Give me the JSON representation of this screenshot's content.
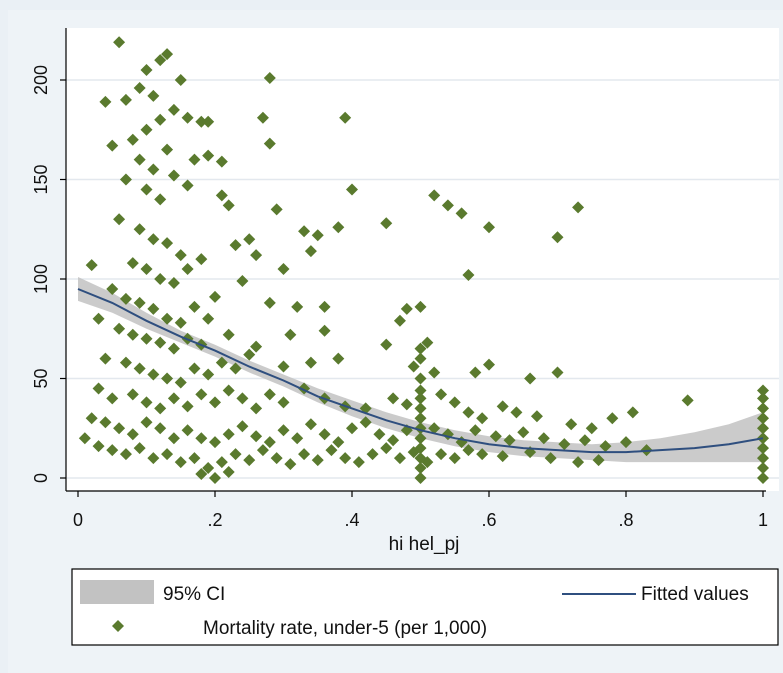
{
  "chart_data": {
    "type": "scatter",
    "xlabel": "hi hel_pj",
    "ylabel": "",
    "xlim": [
      0,
      1
    ],
    "ylim": [
      0,
      220
    ],
    "x_ticks": [
      0,
      0.2,
      0.4,
      0.6,
      0.8,
      1
    ],
    "x_tick_labels": [
      "0",
      ".2",
      ".4",
      ".6",
      ".8",
      "1"
    ],
    "y_ticks": [
      0,
      50,
      100,
      150,
      200
    ],
    "y_tick_labels": [
      "0",
      "50",
      "100",
      "150",
      "200"
    ],
    "grid": true,
    "legend_position": "bottom",
    "colors": {
      "points": "#5a7a2e",
      "fit": "#2f4f7f",
      "ci": "#c2c2c2",
      "plot_bg": "#ffffff",
      "grid": "#e3e8ee"
    },
    "legend": [
      {
        "key": "ci",
        "label": "95% CI"
      },
      {
        "key": "fit",
        "label": "Fitted values"
      },
      {
        "key": "points",
        "label": "Mortality rate, under-5 (per 1,000)"
      }
    ],
    "series": [
      {
        "name": "Mortality rate, under-5 (per 1,000)",
        "type": "scatter",
        "points": [
          [
            0.06,
            219
          ],
          [
            0.1,
            205
          ],
          [
            0.12,
            210
          ],
          [
            0.13,
            213
          ],
          [
            0.15,
            200
          ],
          [
            0.28,
            201
          ],
          [
            0.09,
            196
          ],
          [
            0.11,
            192
          ],
          [
            0.07,
            190
          ],
          [
            0.04,
            189
          ],
          [
            0.14,
            185
          ],
          [
            0.16,
            181
          ],
          [
            0.18,
            179
          ],
          [
            0.19,
            179
          ],
          [
            0.27,
            181
          ],
          [
            0.39,
            181
          ],
          [
            0.1,
            175
          ],
          [
            0.12,
            180
          ],
          [
            0.08,
            170
          ],
          [
            0.05,
            167
          ],
          [
            0.09,
            160
          ],
          [
            0.13,
            165
          ],
          [
            0.17,
            160
          ],
          [
            0.19,
            162
          ],
          [
            0.28,
            168
          ],
          [
            0.11,
            155
          ],
          [
            0.14,
            152
          ],
          [
            0.07,
            150
          ],
          [
            0.1,
            145
          ],
          [
            0.12,
            140
          ],
          [
            0.16,
            147
          ],
          [
            0.21,
            159
          ],
          [
            0.4,
            145
          ],
          [
            0.52,
            142
          ],
          [
            0.54,
            137
          ],
          [
            0.56,
            133
          ],
          [
            0.6,
            126
          ],
          [
            0.73,
            136
          ],
          [
            0.7,
            121
          ],
          [
            0.21,
            142
          ],
          [
            0.22,
            137
          ],
          [
            0.29,
            135
          ],
          [
            0.33,
            124
          ],
          [
            0.35,
            122
          ],
          [
            0.38,
            126
          ],
          [
            0.45,
            128
          ],
          [
            0.06,
            130
          ],
          [
            0.09,
            125
          ],
          [
            0.11,
            120
          ],
          [
            0.13,
            118
          ],
          [
            0.15,
            112
          ],
          [
            0.08,
            108
          ],
          [
            0.1,
            105
          ],
          [
            0.12,
            100
          ],
          [
            0.14,
            98
          ],
          [
            0.16,
            105
          ],
          [
            0.18,
            110
          ],
          [
            0.23,
            117
          ],
          [
            0.25,
            120
          ],
          [
            0.26,
            112
          ],
          [
            0.3,
            105
          ],
          [
            0.34,
            114
          ],
          [
            0.57,
            102
          ],
          [
            0.02,
            107
          ],
          [
            0.05,
            95
          ],
          [
            0.07,
            90
          ],
          [
            0.09,
            88
          ],
          [
            0.11,
            85
          ],
          [
            0.13,
            80
          ],
          [
            0.15,
            78
          ],
          [
            0.17,
            86
          ],
          [
            0.19,
            80
          ],
          [
            0.2,
            91
          ],
          [
            0.24,
            99
          ],
          [
            0.28,
            88
          ],
          [
            0.32,
            86
          ],
          [
            0.36,
            86
          ],
          [
            0.47,
            79
          ],
          [
            0.48,
            85
          ],
          [
            0.5,
            86
          ],
          [
            0.03,
            80
          ],
          [
            0.06,
            75
          ],
          [
            0.08,
            72
          ],
          [
            0.1,
            70
          ],
          [
            0.12,
            68
          ],
          [
            0.14,
            65
          ],
          [
            0.16,
            70
          ],
          [
            0.18,
            67
          ],
          [
            0.22,
            72
          ],
          [
            0.26,
            66
          ],
          [
            0.31,
            72
          ],
          [
            0.36,
            74
          ],
          [
            0.45,
            67
          ],
          [
            0.51,
            68
          ],
          [
            0.04,
            60
          ],
          [
            0.07,
            58
          ],
          [
            0.09,
            55
          ],
          [
            0.11,
            52
          ],
          [
            0.13,
            50
          ],
          [
            0.15,
            48
          ],
          [
            0.17,
            55
          ],
          [
            0.19,
            52
          ],
          [
            0.21,
            58
          ],
          [
            0.23,
            55
          ],
          [
            0.25,
            62
          ],
          [
            0.3,
            56
          ],
          [
            0.34,
            58
          ],
          [
            0.38,
            60
          ],
          [
            0.49,
            56
          ],
          [
            0.52,
            53
          ],
          [
            0.58,
            53
          ],
          [
            0.6,
            57
          ],
          [
            0.66,
            50
          ],
          [
            0.7,
            53
          ],
          [
            0.03,
            45
          ],
          [
            0.05,
            40
          ],
          [
            0.08,
            42
          ],
          [
            0.1,
            38
          ],
          [
            0.12,
            35
          ],
          [
            0.14,
            40
          ],
          [
            0.16,
            36
          ],
          [
            0.18,
            42
          ],
          [
            0.2,
            38
          ],
          [
            0.22,
            44
          ],
          [
            0.24,
            40
          ],
          [
            0.26,
            35
          ],
          [
            0.28,
            42
          ],
          [
            0.3,
            38
          ],
          [
            0.33,
            45
          ],
          [
            0.36,
            40
          ],
          [
            0.39,
            36
          ],
          [
            0.42,
            35
          ],
          [
            0.46,
            40
          ],
          [
            0.48,
            37
          ],
          [
            0.5,
            44
          ],
          [
            0.53,
            42
          ],
          [
            0.55,
            38
          ],
          [
            0.57,
            33
          ],
          [
            0.59,
            30
          ],
          [
            0.62,
            36
          ],
          [
            0.64,
            33
          ],
          [
            0.67,
            31
          ],
          [
            0.72,
            27
          ],
          [
            0.75,
            25
          ],
          [
            0.78,
            30
          ],
          [
            0.81,
            33
          ],
          [
            0.89,
            39
          ],
          [
            0.02,
            30
          ],
          [
            0.04,
            28
          ],
          [
            0.06,
            25
          ],
          [
            0.08,
            22
          ],
          [
            0.1,
            28
          ],
          [
            0.12,
            25
          ],
          [
            0.14,
            20
          ],
          [
            0.16,
            24
          ],
          [
            0.18,
            20
          ],
          [
            0.2,
            18
          ],
          [
            0.22,
            22
          ],
          [
            0.24,
            26
          ],
          [
            0.26,
            21
          ],
          [
            0.28,
            18
          ],
          [
            0.3,
            24
          ],
          [
            0.32,
            20
          ],
          [
            0.34,
            27
          ],
          [
            0.36,
            22
          ],
          [
            0.38,
            18
          ],
          [
            0.4,
            25
          ],
          [
            0.42,
            28
          ],
          [
            0.44,
            22
          ],
          [
            0.46,
            19
          ],
          [
            0.48,
            24
          ],
          [
            0.5,
            20
          ],
          [
            0.52,
            25
          ],
          [
            0.54,
            22
          ],
          [
            0.56,
            18
          ],
          [
            0.58,
            24
          ],
          [
            0.61,
            21
          ],
          [
            0.63,
            19
          ],
          [
            0.65,
            23
          ],
          [
            0.68,
            20
          ],
          [
            0.71,
            17
          ],
          [
            0.74,
            19
          ],
          [
            0.77,
            16
          ],
          [
            0.8,
            18
          ],
          [
            0.83,
            14
          ],
          [
            0.01,
            20
          ],
          [
            0.03,
            16
          ],
          [
            0.05,
            14
          ],
          [
            0.07,
            12
          ],
          [
            0.09,
            15
          ],
          [
            0.11,
            10
          ],
          [
            0.13,
            12
          ],
          [
            0.15,
            8
          ],
          [
            0.17,
            10
          ],
          [
            0.19,
            5
          ],
          [
            0.21,
            8
          ],
          [
            0.23,
            12
          ],
          [
            0.25,
            9
          ],
          [
            0.27,
            14
          ],
          [
            0.29,
            10
          ],
          [
            0.31,
            7
          ],
          [
            0.33,
            12
          ],
          [
            0.35,
            9
          ],
          [
            0.37,
            14
          ],
          [
            0.39,
            10
          ],
          [
            0.41,
            8
          ],
          [
            0.43,
            12
          ],
          [
            0.45,
            15
          ],
          [
            0.47,
            10
          ],
          [
            0.49,
            13
          ],
          [
            0.51,
            8
          ],
          [
            0.53,
            12
          ],
          [
            0.55,
            10
          ],
          [
            0.57,
            14
          ],
          [
            0.59,
            12
          ],
          [
            0.62,
            11
          ],
          [
            0.66,
            13
          ],
          [
            0.69,
            10
          ],
          [
            0.73,
            8
          ],
          [
            0.76,
            9
          ],
          [
            0.18,
            2
          ],
          [
            0.2,
            0
          ],
          [
            0.22,
            3
          ],
          [
            0.5,
            0
          ],
          [
            0.5,
            5
          ],
          [
            0.5,
            10
          ],
          [
            0.5,
            15
          ],
          [
            0.5,
            25
          ],
          [
            0.5,
            30
          ],
          [
            0.5,
            35
          ],
          [
            0.5,
            40
          ],
          [
            0.5,
            50
          ],
          [
            0.5,
            60
          ],
          [
            0.5,
            65
          ],
          [
            1,
            0
          ],
          [
            1,
            5
          ],
          [
            1,
            10
          ],
          [
            1,
            15
          ],
          [
            1,
            20
          ],
          [
            1,
            25
          ],
          [
            1,
            30
          ],
          [
            1,
            35
          ],
          [
            1,
            40
          ],
          [
            1,
            44
          ]
        ]
      },
      {
        "name": "Fitted values",
        "type": "line",
        "x": [
          0,
          0.05,
          0.1,
          0.15,
          0.2,
          0.25,
          0.3,
          0.35,
          0.4,
          0.45,
          0.5,
          0.55,
          0.6,
          0.65,
          0.7,
          0.75,
          0.8,
          0.85,
          0.9,
          0.95,
          1
        ],
        "y": [
          95,
          88,
          79,
          71,
          64,
          56,
          49,
          41,
          35,
          29,
          24,
          20,
          17,
          15,
          14,
          13,
          13,
          14,
          15,
          17,
          20
        ]
      },
      {
        "name": "95% CI",
        "type": "area",
        "x": [
          0,
          0.05,
          0.1,
          0.15,
          0.2,
          0.25,
          0.3,
          0.35,
          0.4,
          0.45,
          0.5,
          0.55,
          0.6,
          0.65,
          0.7,
          0.75,
          0.8,
          0.85,
          0.9,
          0.95,
          1
        ],
        "lower": [
          89,
          83,
          75,
          68,
          61,
          53,
          46,
          38,
          31,
          25,
          20,
          16,
          13,
          11,
          10,
          9,
          8,
          8,
          8,
          8,
          8
        ],
        "upper": [
          101,
          93,
          83,
          74,
          67,
          59,
          52,
          45,
          39,
          33,
          28,
          24,
          21,
          19,
          18,
          17,
          18,
          20,
          23,
          27,
          33
        ]
      }
    ]
  }
}
